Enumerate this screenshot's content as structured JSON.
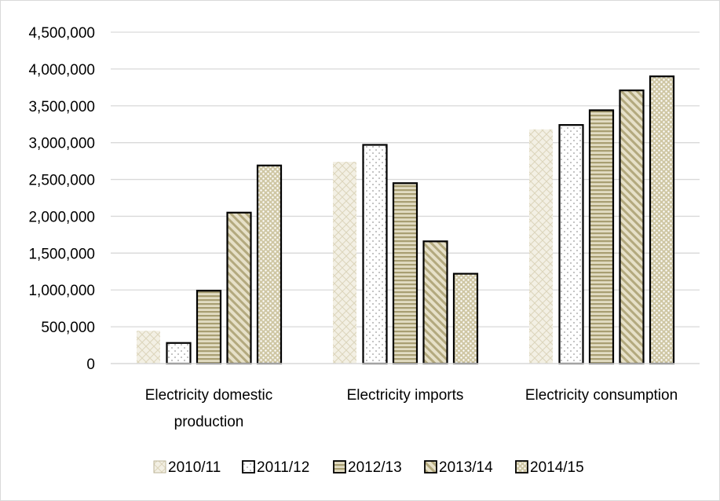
{
  "chart_data": {
    "type": "bar",
    "title": "",
    "xlabel": "",
    "ylabel": "",
    "categories": [
      "Electricity domestic production",
      "Electricity imports",
      "Electricity consumption"
    ],
    "category_label_lines": [
      [
        "Electricity domestic",
        "production"
      ],
      [
        "Electricity imports"
      ],
      [
        "Electricity consumption"
      ]
    ],
    "series": [
      {
        "name": "2010/11",
        "values": [
          445000,
          2740000,
          3180000
        ],
        "pattern": "diamond-lattice",
        "color": "#ede9d9",
        "stroke": "#ede9d9"
      },
      {
        "name": "2011/12",
        "values": [
          280000,
          2970000,
          3240000
        ],
        "pattern": "white-dots",
        "color": "#ffffff",
        "stroke": "#000000"
      },
      {
        "name": "2012/13",
        "values": [
          990000,
          2450000,
          3440000
        ],
        "pattern": "horizontal-stripes",
        "color": "#c8bf98",
        "stroke": "#000000"
      },
      {
        "name": "2013/14",
        "values": [
          2050000,
          1660000,
          3710000
        ],
        "pattern": "diagonal-stripes",
        "color": "#c8bf98",
        "stroke": "#000000"
      },
      {
        "name": "2014/15",
        "values": [
          2690000,
          1220000,
          3900000
        ],
        "pattern": "dense-dots",
        "color": "#ddd6bc",
        "stroke": "#000000"
      }
    ],
    "ylim": [
      0,
      4500000
    ],
    "yticks": [
      0,
      500000,
      1000000,
      1500000,
      2000000,
      2500000,
      3000000,
      3500000,
      4000000,
      4500000
    ],
    "ytick_labels": [
      "0",
      "500,000",
      "1,000,000",
      "1,500,000",
      "2,000,000",
      "2,500,000",
      "3,000,000",
      "3,500,000",
      "4,000,000",
      "4,500,000"
    ],
    "grid": true,
    "legend_position": "bottom"
  },
  "colors": {
    "gridline": "#d9d9d9",
    "frame": "#d9d9d9",
    "beige_light": "#ede9d9",
    "beige_mid": "#c8bf98",
    "beige_dark": "#a89e72"
  }
}
